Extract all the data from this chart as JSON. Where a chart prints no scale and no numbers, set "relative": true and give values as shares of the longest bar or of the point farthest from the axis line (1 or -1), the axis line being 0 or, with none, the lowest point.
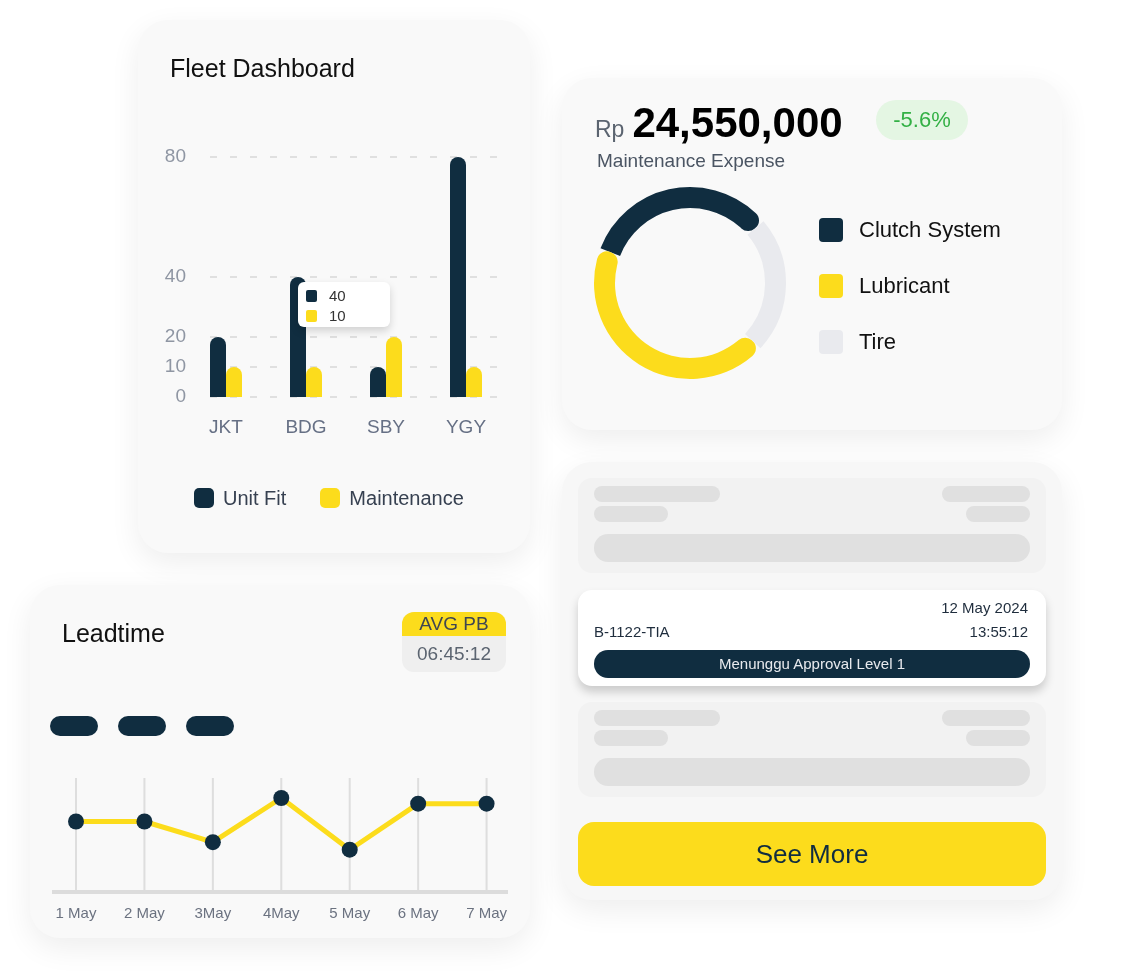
{
  "chart_data": [
    {
      "type": "bar",
      "title": "Fleet Dashboard",
      "categories": [
        "JKT",
        "BDG",
        "SBY",
        "YGY"
      ],
      "series": [
        {
          "name": "Unit Fit",
          "color": "#102d40",
          "values": [
            20,
            40,
            10,
            80
          ]
        },
        {
          "name": "Maintenance",
          "color": "#fcdc1c",
          "values": [
            10,
            10,
            20,
            10
          ]
        }
      ],
      "annotations": [
        "40",
        "10"
      ],
      "ylim": [
        0,
        80
      ],
      "yticks": [
        0,
        10,
        20,
        40,
        80
      ],
      "grid": "y",
      "legend": "bottom"
    },
    {
      "type": "donut",
      "title": "Maintenance Expense",
      "annotations": [
        "Rp",
        "24,550,000",
        "-5.6%"
      ],
      "categories": [
        "Clutch System",
        "Lubricant",
        "Tire"
      ],
      "values": [
        33,
        44,
        23
      ],
      "colors": [
        "#102d40",
        "#fcdc1c",
        "#e9eaee"
      ],
      "legend": "right"
    },
    {
      "type": "other",
      "annotations": [
        "12 May 2024",
        "B-1122-TIA",
        "13:55:12",
        "Menunggu Approval Level 1",
        "See More"
      ]
    },
    {
      "type": "line",
      "title": "Leadtime",
      "annotations": [
        "AVG PB",
        "06:45:12"
      ],
      "categories": [
        "1 May",
        "2 May",
        "3May",
        "4May",
        "5 May",
        "6 May",
        "7 May"
      ],
      "series": [
        {
          "color": "#fcdc1c",
          "colors": [
            "#102d40",
            "#102d40",
            "#102d40",
            "#102d40",
            "#102d40",
            "#102d40",
            "#102d40"
          ],
          "values": [
            0.75,
            0.75,
            0.53,
            1,
            0.45,
            0.94,
            0.94
          ]
        }
      ],
      "relative": true,
      "grid": "x",
      "marker": "circle"
    }
  ]
}
